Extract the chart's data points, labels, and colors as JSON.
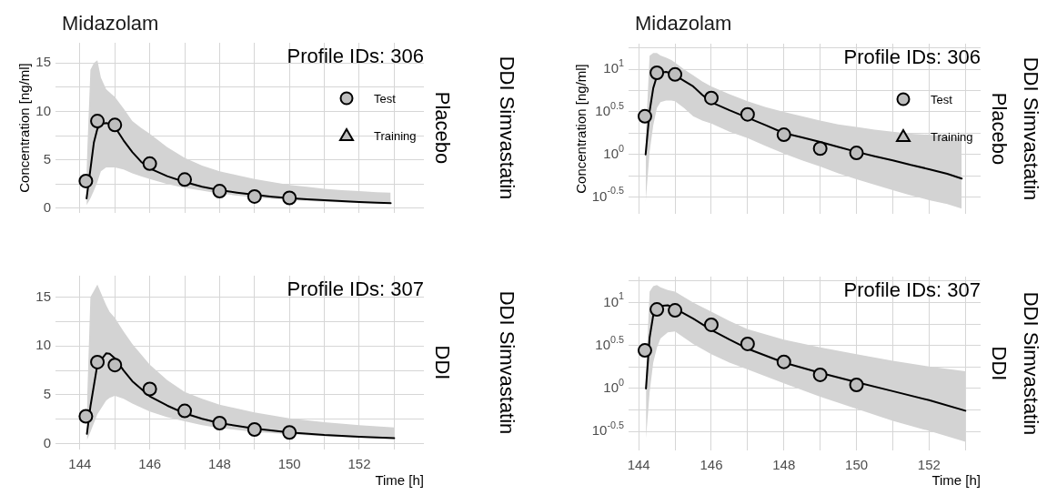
{
  "chart_data": [
    {
      "type": "scatter",
      "title": "Midazolam",
      "ylabel": "Concentration [ng/ml]",
      "annotations": [
        "Profile IDs: 306",
        "Placebo",
        "DDI Simvastatin"
      ],
      "grid": true,
      "legend": "right",
      "tick_labels": "y",
      "xlim": [
        143.3,
        153.85
      ],
      "xticks": [
        144,
        {
          "value": 145,
          "label": null
        },
        146,
        {
          "value": 147,
          "label": null
        },
        148,
        {
          "value": 149,
          "label": null
        },
        150,
        {
          "value": 151,
          "label": null
        },
        152,
        {
          "value": 153,
          "label": null
        }
      ],
      "ylim": [
        -0.5,
        17.1
      ],
      "yticks": [
        0,
        {
          "value": 2.5,
          "label": null
        },
        5,
        {
          "value": 7.5,
          "label": null
        },
        10,
        {
          "value": 12.5,
          "label": null
        },
        15
      ],
      "series": [
        {
          "type": "line",
          "color": "#000000",
          "x": [
            144.19,
            144.3,
            144.4,
            144.5,
            144.6,
            144.75,
            144.9,
            145,
            145.25,
            145.5,
            145.75,
            146,
            146.5,
            147,
            147.5,
            148,
            148.5,
            149,
            149.5,
            150,
            150.5,
            151,
            151.5,
            152,
            152.5,
            152.9
          ],
          "values": [
            1.0,
            4.0,
            6.8,
            8.2,
            8.7,
            8.8,
            8.7,
            8.4,
            7.0,
            5.8,
            4.8,
            4.1,
            3.3,
            2.7,
            2.2,
            1.85,
            1.6,
            1.38,
            1.18,
            1.02,
            0.92,
            0.82,
            0.72,
            0.64,
            0.57,
            0.52
          ],
          "upper": [
            4.0,
            14.3,
            15.0,
            15.3,
            13.5,
            12.3,
            11.8,
            11.5,
            10.3,
            9.0,
            8.3,
            7.7,
            6.3,
            5.2,
            4.4,
            3.8,
            3.4,
            3.0,
            2.7,
            2.4,
            2.2,
            2.0,
            1.85,
            1.75,
            1.65,
            1.6
          ],
          "lower": [
            0.3,
            1.0,
            1.8,
            2.7,
            3.8,
            4.2,
            4.2,
            4.2,
            4.0,
            3.6,
            3.3,
            3.0,
            2.5,
            2.1,
            1.8,
            1.5,
            1.3,
            1.1,
            0.95,
            0.85,
            0.75,
            0.65,
            0.58,
            0.52,
            0.48,
            0.45
          ]
        },
        {
          "type": "scatter",
          "name": "Test",
          "color": "#bebebe",
          "marker": "circle",
          "x": [
            144.17,
            144.5,
            145,
            146,
            147,
            148,
            149,
            150
          ],
          "values": [
            2.8,
            9.0,
            8.6,
            4.6,
            2.95,
            1.75,
            1.2,
            1.05
          ]
        },
        {
          "type": "scatter",
          "name": "Training",
          "color": "#bebebe",
          "marker": "triangle"
        }
      ]
    },
    {
      "type": "scatter",
      "title": "Midazolam",
      "ylabel": "Concentration [ng/ml]",
      "annotations": [
        "Profile IDs: 306",
        "Placebo",
        "DDI Simvastatin"
      ],
      "grid": true,
      "legend": "right",
      "tick_labels": "y",
      "log": "y",
      "xlim": [
        143.72,
        153.42
      ],
      "xticks": [
        144,
        {
          "value": 145,
          "label": null
        },
        146,
        {
          "value": 147,
          "label": null
        },
        148,
        {
          "value": 149,
          "label": null
        },
        150,
        {
          "value": 151,
          "label": null
        },
        152,
        {
          "value": 153,
          "label": null
        }
      ],
      "ylim": [
        0.2,
        20
      ],
      "yticks": [
        {
          "value": 0.3162,
          "label": "10$^{-0.5}$"
        },
        {
          "value": 0.5623,
          "label": null
        },
        {
          "value": 1,
          "label": "10$^{0}$"
        },
        {
          "value": 1.778,
          "label": null
        },
        {
          "value": 3.162,
          "label": "10$^{0.5}$"
        },
        {
          "value": 5.623,
          "label": null
        },
        {
          "value": 10,
          "label": "10$^{1}$"
        },
        {
          "value": 17.78,
          "label": null
        }
      ],
      "series": [
        {
          "type": "line",
          "color": "#000000",
          "x": [
            144.19,
            144.3,
            144.4,
            144.5,
            144.6,
            144.75,
            144.9,
            145,
            145.25,
            145.5,
            145.75,
            146,
            146.5,
            147,
            147.5,
            148,
            148.5,
            149,
            149.5,
            150,
            150.5,
            151,
            151.5,
            152,
            152.5,
            152.9
          ],
          "values": [
            1.0,
            3.2,
            6.0,
            8.3,
            9.1,
            9.3,
            9.0,
            8.5,
            7.3,
            6.3,
            5.0,
            4.1,
            3.3,
            2.7,
            2.2,
            1.78,
            1.58,
            1.4,
            1.22,
            1.07,
            0.95,
            0.85,
            0.75,
            0.67,
            0.59,
            0.52
          ],
          "upper": [
            1.5,
            14.4,
            15.5,
            15.5,
            14.5,
            13.7,
            12.8,
            12.0,
            10.0,
            8.5,
            7.2,
            6.3,
            5.1,
            4.2,
            3.6,
            3.16,
            2.8,
            2.5,
            2.25,
            2.1,
            1.95,
            1.85,
            1.75,
            1.7,
            1.62,
            1.55
          ],
          "lower": [
            0.27,
            1.07,
            2.2,
            3.5,
            4.1,
            4.3,
            4.3,
            4.2,
            3.5,
            2.8,
            2.5,
            2.3,
            1.85,
            1.55,
            1.25,
            1.02,
            0.85,
            0.72,
            0.6,
            0.51,
            0.44,
            0.38,
            0.33,
            0.29,
            0.26,
            0.23
          ]
        },
        {
          "type": "scatter",
          "name": "Test",
          "color": "#bebebe",
          "marker": "circle",
          "x": [
            144.17,
            144.5,
            145,
            146,
            147,
            148,
            149,
            150
          ],
          "values": [
            2.8,
            9.1,
            8.7,
            4.6,
            2.95,
            1.7,
            1.17,
            1.04
          ]
        },
        {
          "type": "scatter",
          "name": "Training",
          "color": "#bebebe",
          "marker": "triangle"
        }
      ]
    },
    {
      "type": "scatter",
      "xlabel": "Time [h]",
      "annotations": [
        "Profile IDs: 307",
        "DDI",
        "DDI Simvastatin"
      ],
      "grid": true,
      "xlim": [
        143.3,
        153.85
      ],
      "xticks": [
        144,
        {
          "value": 145,
          "label": null
        },
        146,
        {
          "value": 147,
          "label": null
        },
        148,
        {
          "value": 149,
          "label": null
        },
        150,
        {
          "value": 151,
          "label": null
        },
        152,
        {
          "value": 153,
          "label": null
        }
      ],
      "ylim": [
        -0.6,
        17.2
      ],
      "yticks": [
        0,
        {
          "value": 2.5,
          "label": null
        },
        5,
        {
          "value": 7.5,
          "label": null
        },
        10,
        {
          "value": 12.5,
          "label": null
        },
        15
      ],
      "series": [
        {
          "type": "line",
          "color": "#000000",
          "x": [
            144.2,
            144.3,
            144.5,
            144.75,
            144.85,
            145,
            145.25,
            145.5,
            146,
            146.5,
            147,
            147.5,
            148,
            149,
            150,
            151,
            152,
            153
          ],
          "values": [
            1.0,
            3.8,
            8.1,
            9.25,
            9.2,
            8.75,
            7.5,
            6.4,
            4.85,
            3.9,
            3.1,
            2.55,
            2.1,
            1.55,
            1.15,
            0.88,
            0.7,
            0.56
          ],
          "upper": [
            3.75,
            15.0,
            16.3,
            14.2,
            13.5,
            12.9,
            11.5,
            10.2,
            8.1,
            6.5,
            5.3,
            4.6,
            4.0,
            3.2,
            2.6,
            2.2,
            1.9,
            1.65
          ],
          "lower": [
            0.35,
            1.2,
            3.0,
            4.4,
            4.7,
            4.9,
            4.6,
            4.1,
            3.3,
            2.7,
            2.3,
            1.9,
            1.6,
            1.2,
            0.95,
            0.75,
            0.6,
            0.5
          ]
        },
        {
          "type": "scatter",
          "color": "#bebebe",
          "marker": "circle",
          "x": [
            144.17,
            144.5,
            145,
            146,
            147,
            148,
            149,
            150
          ],
          "values": [
            2.8,
            8.35,
            8.05,
            5.6,
            3.35,
            2.1,
            1.45,
            1.15
          ]
        }
      ]
    },
    {
      "type": "scatter",
      "xlabel": "Time [h]",
      "annotations": [
        "Profile IDs: 307",
        "DDI",
        "DDI Simvastatin"
      ],
      "grid": true,
      "log": "y",
      "xlim": [
        143.72,
        153.42
      ],
      "xticks": [
        144,
        {
          "value": 145,
          "label": null
        },
        146,
        {
          "value": 147,
          "label": null
        },
        148,
        {
          "value": 149,
          "label": null
        },
        150,
        {
          "value": 151,
          "label": null
        },
        152,
        {
          "value": 153,
          "label": null
        }
      ],
      "ylim": [
        0.19,
        20
      ],
      "yticks": [
        {
          "value": 0.3162,
          "label": "10$^{-0.5}$"
        },
        {
          "value": 0.5623,
          "label": null
        },
        {
          "value": 1,
          "label": "10$^{0}$"
        },
        {
          "value": 1.778,
          "label": null
        },
        {
          "value": 3.162,
          "label": "10$^{0.5}$"
        },
        {
          "value": 5.623,
          "label": null
        },
        {
          "value": 10,
          "label": "10$^{1}$"
        },
        {
          "value": 17.78,
          "label": null
        }
      ],
      "series": [
        {
          "type": "line",
          "color": "#000000",
          "x": [
            144.2,
            144.3,
            144.4,
            144.5,
            144.6,
            144.8,
            145,
            145.5,
            146,
            146.5,
            147,
            148,
            149,
            150,
            151,
            152,
            153
          ],
          "values": [
            1.0,
            3.9,
            7.1,
            8.6,
            9.1,
            9.3,
            8.5,
            6.5,
            4.8,
            3.7,
            2.9,
            2.0,
            1.52,
            1.18,
            0.93,
            0.73,
            0.55
          ],
          "upper": [
            1.5,
            13.4,
            15.5,
            16.0,
            15.0,
            14.0,
            13.4,
            10.0,
            7.8,
            6.1,
            4.9,
            3.7,
            3.0,
            2.5,
            2.1,
            1.8,
            1.58
          ],
          "lower": [
            0.26,
            0.9,
            2.0,
            2.96,
            3.8,
            4.5,
            4.6,
            3.3,
            2.5,
            2.0,
            1.66,
            1.15,
            0.8,
            0.58,
            0.42,
            0.32,
            0.24
          ]
        },
        {
          "type": "scatter",
          "color": "#bebebe",
          "marker": "circle",
          "x": [
            144.17,
            144.5,
            145,
            146,
            147,
            148,
            149,
            150
          ],
          "values": [
            2.77,
            8.3,
            8.1,
            5.5,
            3.3,
            2.04,
            1.44,
            1.1
          ]
        }
      ]
    }
  ]
}
